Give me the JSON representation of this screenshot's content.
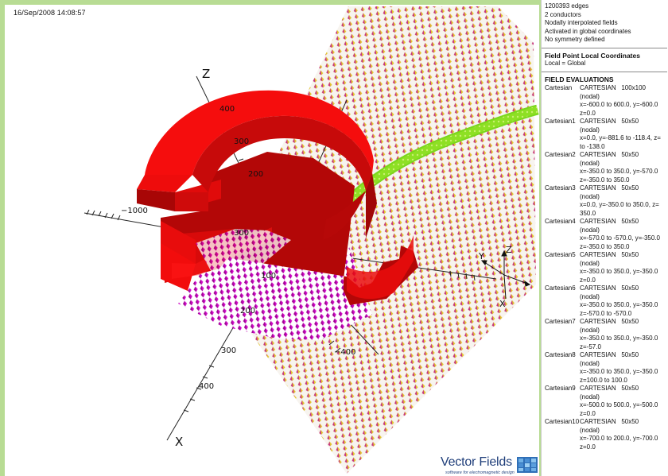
{
  "viewport": {
    "timestamp": "16/Sep/2008 14:08:57",
    "axes": {
      "z_label": "Z",
      "x_label": "X",
      "z_ticks": [
        "400",
        "300",
        "200"
      ],
      "y_tick_neg": "−1000",
      "x_ticks": [
        "300",
        "400"
      ],
      "other_tick": "−400",
      "tick_near_origin": [
        "100",
        "200",
        "300"
      ]
    },
    "corner_axes": {
      "y": "Y",
      "z": "Z",
      "x": "X"
    },
    "colors": {
      "magnet": "#f20c0c",
      "magnet_dark": "#b40808",
      "coil": "#8ae020",
      "grid_magenta": "#cc00cc",
      "grid_yellow": "#e6c820",
      "background_frame": "#b8dc94"
    }
  },
  "logo": {
    "title": "Vector Fields",
    "tagline": "software for electromagnetic design"
  },
  "panel": {
    "info": [
      "1200393 edges",
      "2 conductors",
      "Nodally interpolated fields",
      "Activated in global coordinates",
      "No symmetry defined"
    ],
    "local_coords": {
      "heading": "Field Point Local Coordinates",
      "value": "Local = Global"
    },
    "field_evaluations": {
      "heading": "FIELD EVALUATIONS",
      "rows": [
        {
          "name": "Cartesian",
          "type": "CARTESIAN",
          "size": "100x100",
          "mode": "(nodal)",
          "range1": "x=-600.0 to 600.0, y=-600.0",
          "range2": "z=0.0"
        },
        {
          "name": "Cartesian1",
          "type": "CARTESIAN",
          "size": "50x50",
          "mode": "(nodal)",
          "range1": "x=0.0, y=-881.6 to -118.4, z=",
          "range2": "to -138.0"
        },
        {
          "name": "Cartesian2",
          "type": "CARTESIAN",
          "size": "50x50",
          "mode": "(nodal)",
          "range1": "x=-350.0 to 350.0, y=-570.0",
          "range2": "z=-350.0 to 350.0"
        },
        {
          "name": "Cartesian3",
          "type": "CARTESIAN",
          "size": "50x50",
          "mode": "(nodal)",
          "range1": "x=0.0, y=-350.0 to 350.0, z=",
          "range2": "350.0"
        },
        {
          "name": "Cartesian4",
          "type": "CARTESIAN",
          "size": "50x50",
          "mode": "(nodal)",
          "range1": "x=-570.0 to -570.0, y=-350.0",
          "range2": "z=-350.0 to 350.0"
        },
        {
          "name": "Cartesian5",
          "type": "CARTESIAN",
          "size": "50x50",
          "mode": "(nodal)",
          "range1": "x=-350.0 to 350.0, y=-350.0",
          "range2": "z=0.0"
        },
        {
          "name": "Cartesian6",
          "type": "CARTESIAN",
          "size": "50x50",
          "mode": "(nodal)",
          "range1": "x=-350.0 to 350.0, y=-350.0",
          "range2": "z=-570.0 to -570.0"
        },
        {
          "name": "Cartesian7",
          "type": "CARTESIAN",
          "size": "50x50",
          "mode": "(nodal)",
          "range1": "x=-350.0 to 350.0, y=-350.0",
          "range2": "z=-57.0"
        },
        {
          "name": "Cartesian8",
          "type": "CARTESIAN",
          "size": "50x50",
          "mode": "(nodal)",
          "range1": "x=-350.0 to 350.0, y=-350.0",
          "range2": "z=100.0 to 100.0"
        },
        {
          "name": "Cartesian9",
          "type": "CARTESIAN",
          "size": "50x50",
          "mode": "(nodal)",
          "range1": "x=-500.0 to 500.0, y=-500.0",
          "range2": "z=0.0"
        },
        {
          "name": "Cartesian10",
          "type": "CARTESIAN",
          "size": "50x50",
          "mode": "(nodal)",
          "range1": "x=-700.0 to 200.0, y=-700.0",
          "range2": "z=0.0"
        }
      ]
    }
  }
}
